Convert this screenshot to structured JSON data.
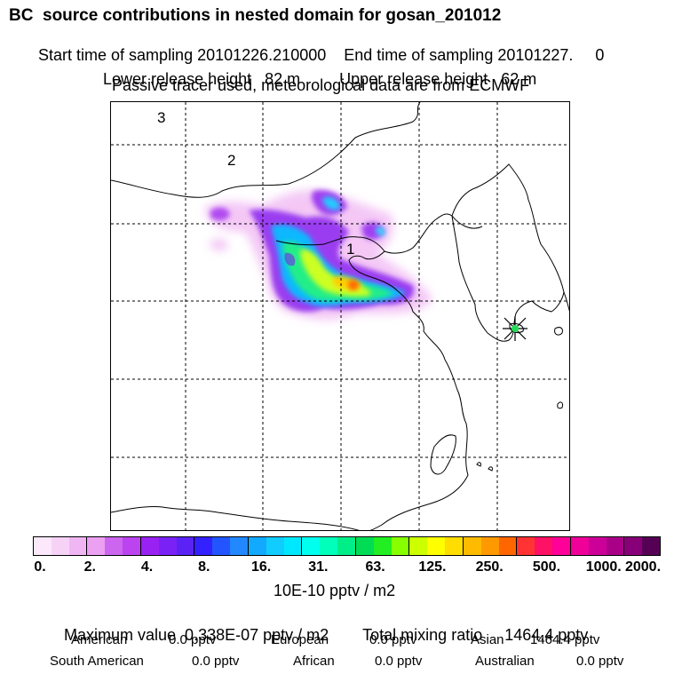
{
  "header": {
    "title": "BC  source contributions in nested domain for gosan_201012",
    "start_label": "Start time of sampling 20101226.210000",
    "end_label": "End time of sampling 20101227.     0",
    "lower_release": "Lower release height   82 m",
    "upper_release": "Upper release height   62 m",
    "tracer_note": "Passive tracer used, meteorological data are from ECMWF"
  },
  "map": {
    "region_labels": [
      "3",
      "2",
      "1"
    ],
    "receptor_marker": "star-icon"
  },
  "colorbar": {
    "colors": [
      "#fbe8fb",
      "#f7d2f7",
      "#f0b6f3",
      "#eba0f2",
      "#cc66ee",
      "#bb44f0",
      "#9922f2",
      "#7a22f5",
      "#5a22f5",
      "#3322ff",
      "#2255ff",
      "#2288ff",
      "#11aaff",
      "#11ccff",
      "#00e8ff",
      "#00ffee",
      "#00ffbb",
      "#00ee88",
      "#00dd55",
      "#22ee22",
      "#88ff00",
      "#ccff00",
      "#ffff00",
      "#ffdd00",
      "#ffbb00",
      "#ff9900",
      "#ff6600",
      "#ff3333",
      "#ff1166",
      "#ff0099",
      "#ee0099",
      "#cc0099",
      "#aa0088",
      "#880077",
      "#550055"
    ],
    "tick_labels": [
      "0.",
      "2.",
      "4.",
      "8.",
      "16.",
      "31.",
      "63.",
      "125.",
      "250.",
      "500.",
      "1000.",
      "2000."
    ],
    "units": "10E-10 pptv / m2"
  },
  "summary": {
    "max_value": "Maximum value  0.338E-07 pptv / m2",
    "total_mixing": "Total mixing ratio     1464.4 pptv",
    "american_label": "American",
    "american_value": "0.0 pptv",
    "european_label": "European",
    "european_value": "0.0 pptv",
    "asian_label": "Asian",
    "asian_value": "1464.4 pptv",
    "south_american_label": "South American",
    "south_american_value": "0.0 pptv",
    "african_label": "African",
    "african_value": "0.0 pptv",
    "australian_label": "Australian",
    "australian_value": "0.0 pptv"
  }
}
